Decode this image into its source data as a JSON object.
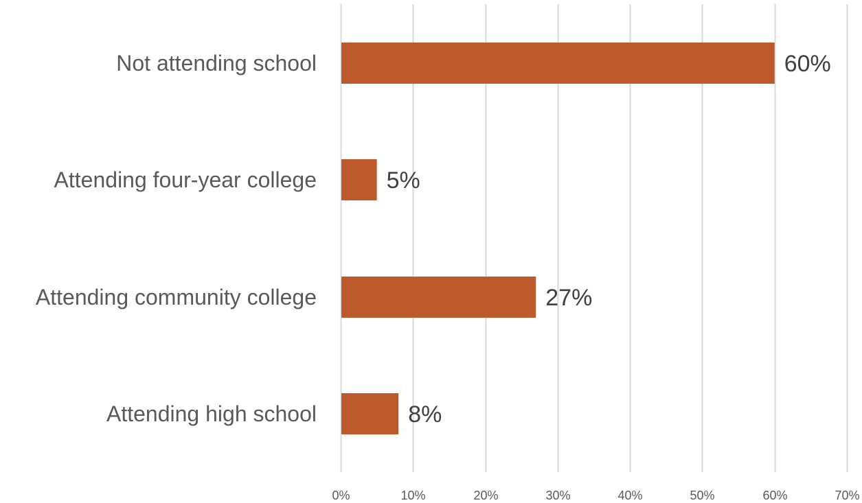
{
  "chart_data": {
    "type": "bar",
    "orientation": "horizontal",
    "categories": [
      "Not attending school",
      "Attending four-year college",
      "Attending community college",
      "Attending high school"
    ],
    "values": [
      60,
      5,
      27,
      8
    ],
    "value_labels": [
      "60%",
      "5%",
      "27%",
      "8%"
    ],
    "xlim": [
      0,
      70
    ],
    "xticks": [
      0,
      10,
      20,
      30,
      40,
      50,
      60,
      70
    ],
    "xtick_labels": [
      "0%",
      "10%",
      "20%",
      "30%",
      "40%",
      "50%",
      "60%",
      "70%"
    ],
    "grid": "vertical",
    "legend": "none",
    "colors": {
      "bar": "#BE592C",
      "grid": "#D9D9D9",
      "category_text": "#595959",
      "label_text": "#404040"
    }
  }
}
